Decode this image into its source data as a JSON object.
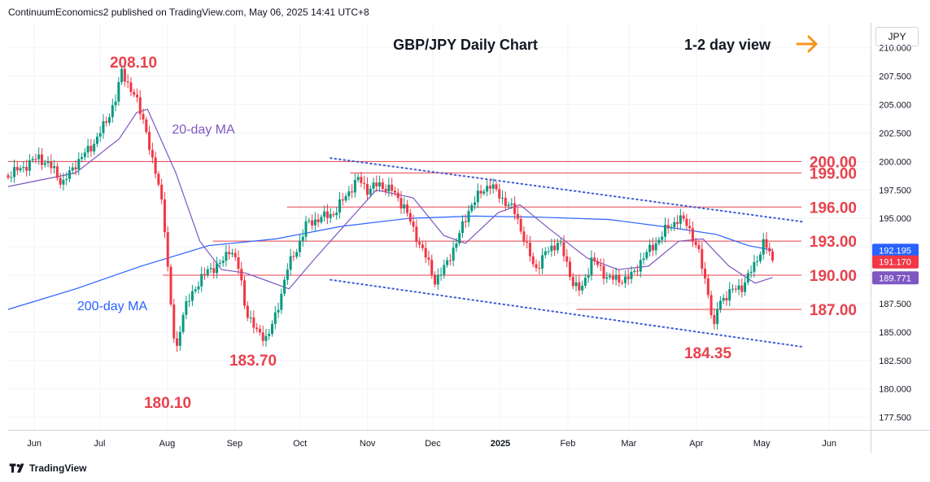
{
  "header": {
    "published": "ContinuumEconomics2 published on TradingView.com, May 06, 2025 14:41 UTC+8",
    "symbol_currency": "JPY"
  },
  "footer": {
    "brand": "TradingView",
    "logo_icon": "tradingview-logo-icon"
  },
  "chart_data": {
    "type": "candlestick",
    "title": "GBP/JPY Daily Chart",
    "view_label": "1-2 day view",
    "view_icon": "arrow-right-icon",
    "ylim": [
      176.4,
      212.2
    ],
    "y_ticks": [
      "177.500",
      "180.000",
      "182.500",
      "185.000",
      "187.500",
      "190.000",
      "192.500",
      "195.000",
      "197.500",
      "200.000",
      "202.500",
      "205.000",
      "207.500",
      "210.000"
    ],
    "x_ticks": [
      "Jun",
      "Jul",
      "Aug",
      "Sep",
      "Oct",
      "Nov",
      "Dec",
      "2025",
      "Feb",
      "Mar",
      "Apr",
      "May",
      "Jun"
    ],
    "colors": {
      "up": "#089981",
      "down": "#f23645",
      "level": "#e8424d",
      "ma20": "#7e57c2",
      "ma200": "#2962ff",
      "channel": "#3d5bd6",
      "arrow": "#f7941d"
    },
    "levels": [
      {
        "value": 200.0,
        "label": "200.00"
      },
      {
        "value": 199.0,
        "label": "199.00"
      },
      {
        "value": 196.0,
        "label": "196.00"
      },
      {
        "value": 193.0,
        "label": "193.00"
      },
      {
        "value": 190.0,
        "label": "190.00"
      },
      {
        "value": 187.0,
        "label": "187.00"
      }
    ],
    "annotations": [
      {
        "text": "208.10",
        "kind": "peak"
      },
      {
        "text": "180.10",
        "kind": "trough"
      },
      {
        "text": "183.70",
        "kind": "trough"
      },
      {
        "text": "184.35",
        "kind": "trough"
      },
      {
        "text": "20-day MA",
        "kind": "ma20"
      },
      {
        "text": "200-day MA",
        "kind": "ma200"
      }
    ],
    "price_tags": [
      {
        "value": 192.195,
        "label": "192.195",
        "color": "#2962ff"
      },
      {
        "value": 191.17,
        "label": "191.170",
        "color": "#f23645"
      },
      {
        "value": 189.771,
        "label": "189.771",
        "color": "#7e57c2"
      }
    ],
    "channel": {
      "upper": [
        [
          "2024-10-15",
          200.3
        ],
        [
          "2025-05-20",
          194.7
        ]
      ],
      "lower": [
        [
          "2024-10-15",
          189.6
        ],
        [
          "2025-05-20",
          183.7
        ]
      ]
    },
    "close_path": [
      [
        "2024-05-20",
        198.8
      ],
      [
        "2024-05-27",
        199.5
      ],
      [
        "2024-06-03",
        200.4
      ],
      [
        "2024-06-10",
        199.3
      ],
      [
        "2024-06-14",
        198.0
      ],
      [
        "2024-06-20",
        199.8
      ],
      [
        "2024-06-28",
        201.5
      ],
      [
        "2024-07-04",
        203.5
      ],
      [
        "2024-07-09",
        205.8
      ],
      [
        "2024-07-11",
        208.0
      ],
      [
        "2024-07-15",
        206.5
      ],
      [
        "2024-07-18",
        205.3
      ],
      [
        "2024-07-22",
        203.2
      ],
      [
        "2024-07-25",
        200.0
      ],
      [
        "2024-07-29",
        197.5
      ],
      [
        "2024-07-31",
        194.0
      ],
      [
        "2024-08-02",
        188.5
      ],
      [
        "2024-08-05",
        183.0
      ],
      [
        "2024-08-07",
        185.5
      ],
      [
        "2024-08-09",
        187.0
      ],
      [
        "2024-08-14",
        189.0
      ],
      [
        "2024-08-20",
        190.5
      ],
      [
        "2024-08-26",
        191.0
      ],
      [
        "2024-08-30",
        192.5
      ],
      [
        "2024-09-03",
        190.5
      ],
      [
        "2024-09-06",
        187.0
      ],
      [
        "2024-09-11",
        185.0
      ],
      [
        "2024-09-16",
        184.5
      ],
      [
        "2024-09-20",
        186.5
      ],
      [
        "2024-09-25",
        190.5
      ],
      [
        "2024-09-30",
        192.5
      ],
      [
        "2024-10-04",
        194.5
      ],
      [
        "2024-10-10",
        195.0
      ],
      [
        "2024-10-17",
        195.5
      ],
      [
        "2024-10-22",
        197.0
      ],
      [
        "2024-10-28",
        198.5
      ],
      [
        "2024-11-01",
        197.5
      ],
      [
        "2024-11-06",
        198.0
      ],
      [
        "2024-11-12",
        197.5
      ],
      [
        "2024-11-18",
        196.0
      ],
      [
        "2024-11-22",
        194.0
      ],
      [
        "2024-11-28",
        191.5
      ],
      [
        "2024-12-02",
        189.5
      ],
      [
        "2024-12-06",
        190.5
      ],
      [
        "2024-12-12",
        193.0
      ],
      [
        "2024-12-18",
        196.0
      ],
      [
        "2024-12-24",
        197.5
      ],
      [
        "2024-12-27",
        198.0
      ],
      [
        "2025-01-03",
        196.5
      ],
      [
        "2025-01-08",
        195.5
      ],
      [
        "2025-01-13",
        192.5
      ],
      [
        "2025-01-17",
        190.5
      ],
      [
        "2025-01-22",
        192.0
      ],
      [
        "2025-01-28",
        193.0
      ],
      [
        "2025-02-03",
        189.5
      ],
      [
        "2025-02-07",
        188.5
      ],
      [
        "2025-02-12",
        191.5
      ],
      [
        "2025-02-18",
        190.0
      ],
      [
        "2025-02-24",
        189.5
      ],
      [
        "2025-03-03",
        190.0
      ],
      [
        "2025-03-07",
        191.5
      ],
      [
        "2025-03-12",
        192.5
      ],
      [
        "2025-03-18",
        194.0
      ],
      [
        "2025-03-24",
        195.0
      ],
      [
        "2025-03-28",
        194.5
      ],
      [
        "2025-04-02",
        192.0
      ],
      [
        "2025-04-07",
        188.0
      ],
      [
        "2025-04-09",
        185.0
      ],
      [
        "2025-04-11",
        187.5
      ],
      [
        "2025-04-16",
        188.5
      ],
      [
        "2025-04-22",
        189.0
      ],
      [
        "2025-04-28",
        191.0
      ],
      [
        "2025-05-02",
        193.0
      ],
      [
        "2025-05-06",
        191.2
      ]
    ],
    "ma20_path": [
      [
        "2024-05-20",
        197.8
      ],
      [
        "2024-06-20",
        199.0
      ],
      [
        "2024-07-10",
        202.0
      ],
      [
        "2024-07-18",
        204.3
      ],
      [
        "2024-07-23",
        204.6
      ],
      [
        "2024-08-05",
        199.0
      ],
      [
        "2024-08-16",
        193.0
      ],
      [
        "2024-08-26",
        190.5
      ],
      [
        "2024-09-06",
        190.2
      ],
      [
        "2024-09-16",
        189.5
      ],
      [
        "2024-09-26",
        188.8
      ],
      [
        "2024-10-08",
        191.5
      ],
      [
        "2024-10-22",
        194.5
      ],
      [
        "2024-11-05",
        197.5
      ],
      [
        "2024-11-22",
        196.8
      ],
      [
        "2024-12-06",
        193.5
      ],
      [
        "2024-12-16",
        192.8
      ],
      [
        "2024-12-31",
        195.5
      ],
      [
        "2025-01-10",
        196.2
      ],
      [
        "2025-01-24",
        194.0
      ],
      [
        "2025-02-10",
        191.5
      ],
      [
        "2025-02-24",
        190.5
      ],
      [
        "2025-03-10",
        190.8
      ],
      [
        "2025-03-24",
        193.0
      ],
      [
        "2025-04-04",
        193.2
      ],
      [
        "2025-04-16",
        190.8
      ],
      [
        "2025-04-28",
        189.3
      ],
      [
        "2025-05-06",
        189.8
      ]
    ],
    "ma200_path": [
      [
        "2024-05-20",
        187.0
      ],
      [
        "2024-06-20",
        188.8
      ],
      [
        "2024-07-20",
        190.8
      ],
      [
        "2024-08-20",
        192.6
      ],
      [
        "2024-09-20",
        193.2
      ],
      [
        "2024-10-20",
        194.3
      ],
      [
        "2024-11-20",
        195.0
      ],
      [
        "2024-12-20",
        195.2
      ],
      [
        "2025-01-20",
        195.1
      ],
      [
        "2025-02-20",
        194.9
      ],
      [
        "2025-03-20",
        194.2
      ],
      [
        "2025-04-10",
        193.6
      ],
      [
        "2025-04-25",
        192.6
      ],
      [
        "2025-05-06",
        192.2
      ]
    ]
  }
}
